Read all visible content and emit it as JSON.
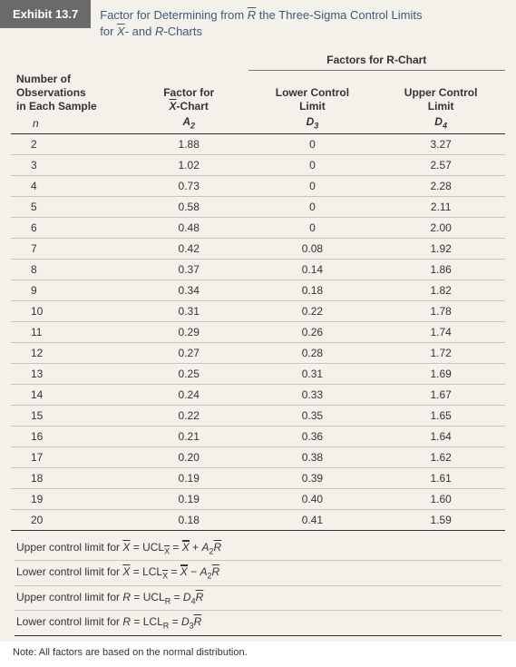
{
  "exhibit": {
    "label": "Exhibit 13.7",
    "title_line1_html": "Factor for Determining from <span class=\"ol ital\">R</span> the Three-Sigma Control Limits",
    "title_line2_html": "for <span class=\"ol ital\">X</span>- and <span class=\"ital\">R</span>-Charts"
  },
  "table": {
    "group_header": "Factors for R-Chart",
    "col1": {
      "line1": "Number of",
      "line2": "Observations",
      "line3": "in Each Sample",
      "sym_html": "n"
    },
    "col2": {
      "line1": "Factor for",
      "line2_html": "<span class=\"ol ital\">X</span>-Chart",
      "sym_html": "<span class=\"sym\">A<sub>2</sub></span>"
    },
    "col3": {
      "line1": "Lower Control",
      "line2": "Limit",
      "sym_html": "<span class=\"sym\">D<sub>3</sub></span>"
    },
    "col4": {
      "line1": "Upper Control",
      "line2": "Limit",
      "sym_html": "<span class=\"sym\">D<sub>4</sub></span>"
    },
    "rows": [
      {
        "n": "2",
        "a2": "1.88",
        "d3": "0",
        "d4": "3.27"
      },
      {
        "n": "3",
        "a2": "1.02",
        "d3": "0",
        "d4": "2.57"
      },
      {
        "n": "4",
        "a2": "0.73",
        "d3": "0",
        "d4": "2.28"
      },
      {
        "n": "5",
        "a2": "0.58",
        "d3": "0",
        "d4": "2.11"
      },
      {
        "n": "6",
        "a2": "0.48",
        "d3": "0",
        "d4": "2.00"
      },
      {
        "n": "7",
        "a2": "0.42",
        "d3": "0.08",
        "d4": "1.92"
      },
      {
        "n": "8",
        "a2": "0.37",
        "d3": "0.14",
        "d4": "1.86"
      },
      {
        "n": "9",
        "a2": "0.34",
        "d3": "0.18",
        "d4": "1.82"
      },
      {
        "n": "10",
        "a2": "0.31",
        "d3": "0.22",
        "d4": "1.78"
      },
      {
        "n": "11",
        "a2": "0.29",
        "d3": "0.26",
        "d4": "1.74"
      },
      {
        "n": "12",
        "a2": "0.27",
        "d3": "0.28",
        "d4": "1.72"
      },
      {
        "n": "13",
        "a2": "0.25",
        "d3": "0.31",
        "d4": "1.69"
      },
      {
        "n": "14",
        "a2": "0.24",
        "d3": "0.33",
        "d4": "1.67"
      },
      {
        "n": "15",
        "a2": "0.22",
        "d3": "0.35",
        "d4": "1.65"
      },
      {
        "n": "16",
        "a2": "0.21",
        "d3": "0.36",
        "d4": "1.64"
      },
      {
        "n": "17",
        "a2": "0.20",
        "d3": "0.38",
        "d4": "1.62"
      },
      {
        "n": "18",
        "a2": "0.19",
        "d3": "0.39",
        "d4": "1.61"
      },
      {
        "n": "19",
        "a2": "0.19",
        "d3": "0.40",
        "d4": "1.60"
      },
      {
        "n": "20",
        "a2": "0.18",
        "d3": "0.41",
        "d4": "1.59"
      }
    ],
    "colors": {
      "background": "#f4f1eb",
      "row_border": "#c9c5bb",
      "header_border": "#333333",
      "title_color": "#3d5a7a",
      "label_bg": "#6a6a6a"
    }
  },
  "formulas": [
    "Upper control limit for <span class=\"ol ital\">X</span> = UCL<sub><span class=\"ol\">X</span></sub> = <span class=\"dol ital\">X</span> + <span class=\"ital\">A</span><sub>2</sub><span class=\"ol ital\">R</span>",
    "Lower control limit for <span class=\"ol ital\">X</span> = LCL<sub><span class=\"ol\">X</span></sub> = <span class=\"dol ital\">X</span> − <span class=\"ital\">A</span><sub>2</sub><span class=\"ol ital\">R</span>",
    "Upper control limit for <span class=\"ital\">R</span> = UCL<sub>R</sub> = <span class=\"ital\">D</span><sub>4</sub><span class=\"ol ital\">R</span>",
    "Lower control limit for <span class=\"ital\">R</span> = LCL<sub>R</sub> = <span class=\"ital\">D</span><sub>3</sub><span class=\"ol ital\">R</span>"
  ],
  "note": "Note: All factors are based on the normal distribution."
}
